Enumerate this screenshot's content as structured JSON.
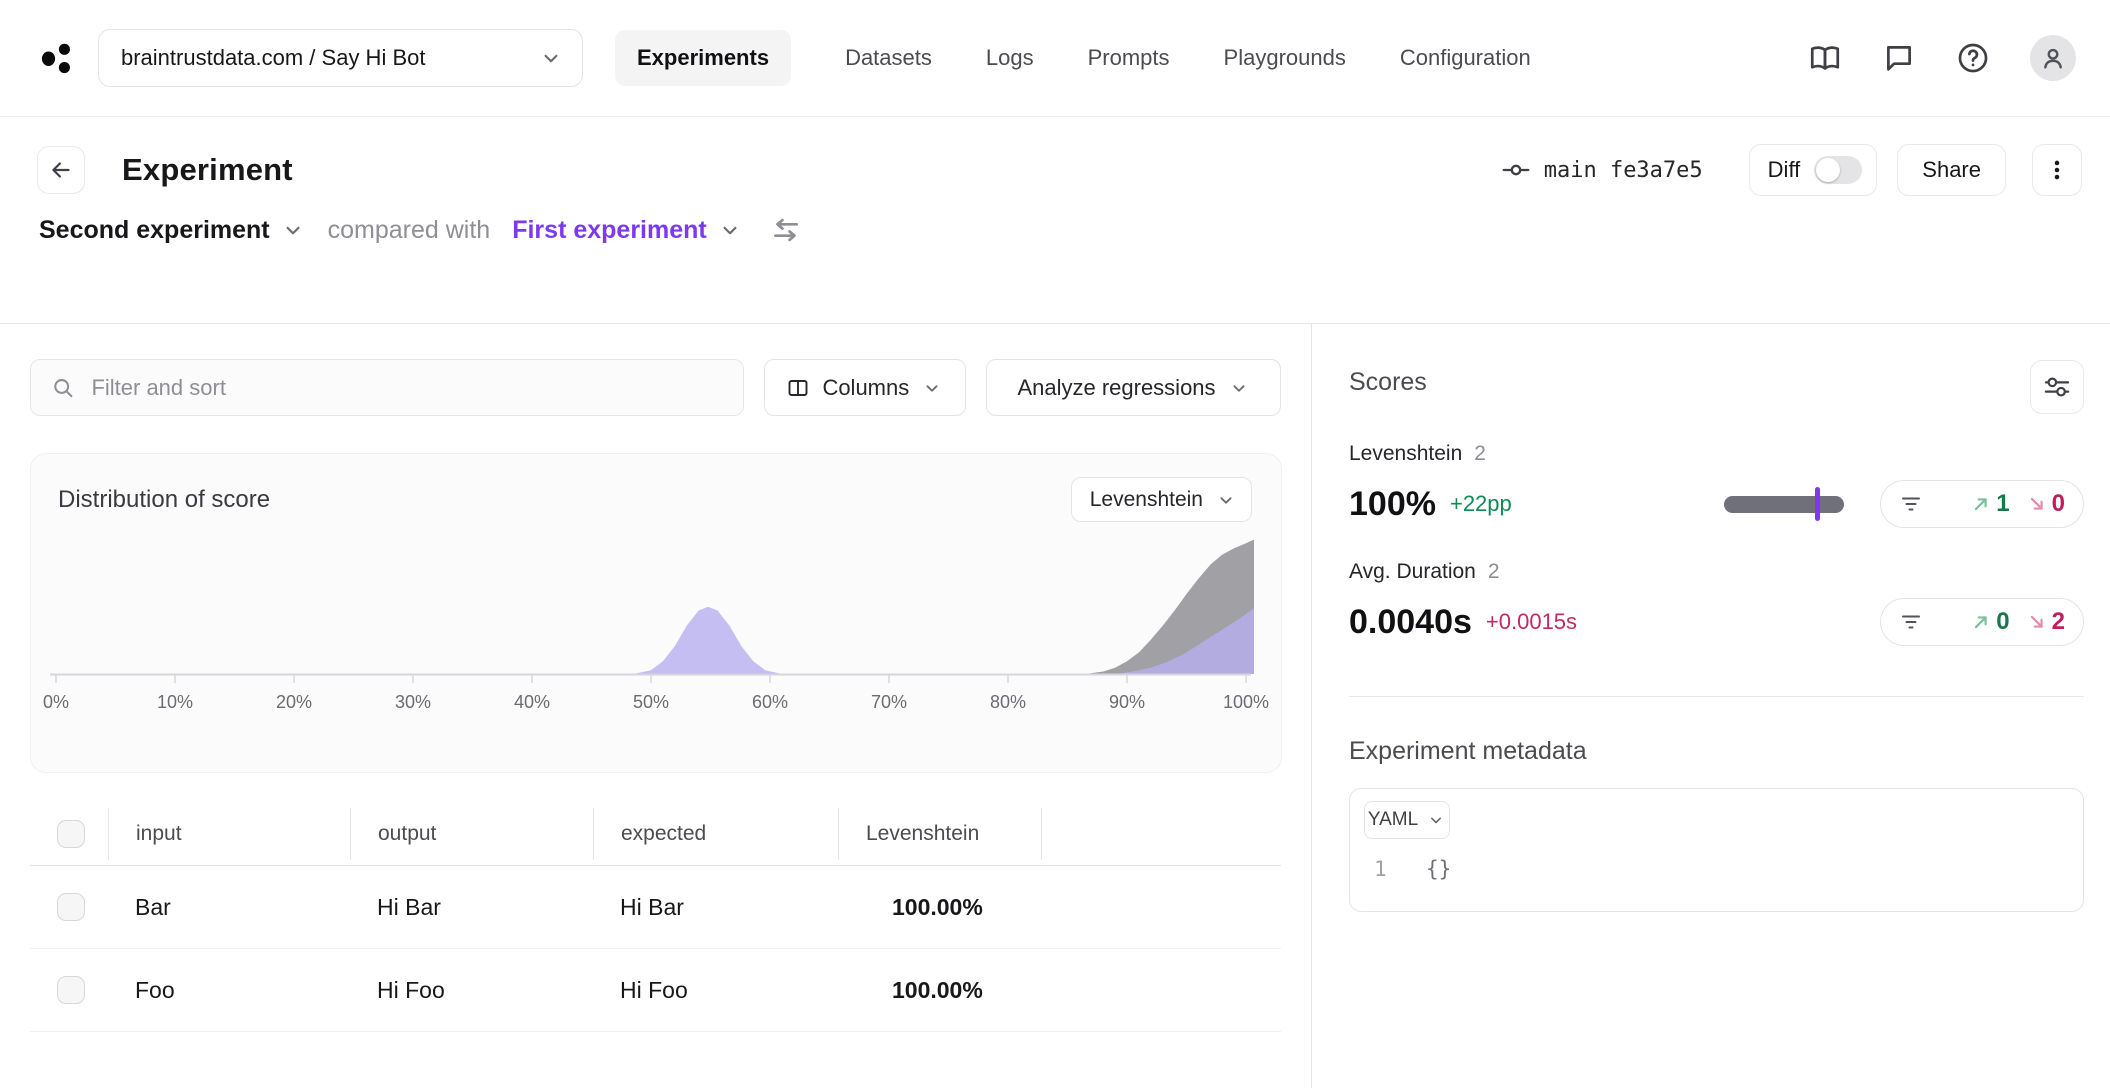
{
  "nav": {
    "project_selector": "braintrustdata.com / Say Hi Bot",
    "tabs": [
      {
        "label": "Experiments",
        "active": true
      },
      {
        "label": "Datasets",
        "active": false
      },
      {
        "label": "Logs",
        "active": false
      },
      {
        "label": "Prompts",
        "active": false
      },
      {
        "label": "Playgrounds",
        "active": false
      },
      {
        "label": "Configuration",
        "active": false
      }
    ],
    "icons": [
      "docs-book",
      "feedback-chat",
      "help",
      "account-avatar"
    ]
  },
  "header": {
    "title": "Experiment",
    "git_ref": "main fe3a7e5",
    "diff_label": "Diff",
    "diff_enabled": false,
    "share_label": "Share"
  },
  "comparison": {
    "base_experiment": "Second experiment",
    "compared_with_label": "compared with",
    "comparison_experiment": "First experiment",
    "comparison_color": "#7c3aed"
  },
  "toolbar": {
    "filter_placeholder": "Filter and sort",
    "columns_label": "Columns",
    "analyze_label": "Analyze regressions"
  },
  "chart_data": {
    "type": "area",
    "title": "Distribution of score",
    "metric_selector": "Levenshtein",
    "x_ticks": [
      "0%",
      "10%",
      "20%",
      "30%",
      "40%",
      "50%",
      "60%",
      "70%",
      "80%",
      "90%",
      "100%"
    ],
    "xlim": [
      0,
      100.7
    ],
    "ylim": [
      0,
      1
    ],
    "grid": false,
    "legend": false,
    "series": [
      {
        "name": "comparison-density-high",
        "color": "#8f8f95",
        "opacity": 0.85,
        "points": [
          [
            86.5,
            0
          ],
          [
            88,
            0.02
          ],
          [
            89,
            0.05
          ],
          [
            90,
            0.1
          ],
          [
            91,
            0.17
          ],
          [
            92,
            0.27
          ],
          [
            93,
            0.38
          ],
          [
            94,
            0.5
          ],
          [
            95,
            0.63
          ],
          [
            96,
            0.75
          ],
          [
            97,
            0.86
          ],
          [
            98,
            0.94
          ],
          [
            99,
            0.99
          ],
          [
            100,
            1.03
          ],
          [
            100.7,
            1.06
          ]
        ]
      },
      {
        "name": "density-mid-bump",
        "color": "#b7aff0",
        "opacity": 0.8,
        "points": [
          [
            48.5,
            0
          ],
          [
            50,
            0.03
          ],
          [
            51,
            0.1
          ],
          [
            52,
            0.22
          ],
          [
            53,
            0.38
          ],
          [
            54,
            0.5
          ],
          [
            54.8,
            0.53
          ],
          [
            55.6,
            0.5
          ],
          [
            56.6,
            0.38
          ],
          [
            57.6,
            0.22
          ],
          [
            58.6,
            0.1
          ],
          [
            59.6,
            0.03
          ],
          [
            61,
            0
          ]
        ]
      },
      {
        "name": "density-high-overlay",
        "color": "#b7aff0",
        "opacity": 0.8,
        "points": [
          [
            89,
            0
          ],
          [
            90.5,
            0.02
          ],
          [
            92,
            0.05
          ],
          [
            93.5,
            0.1
          ],
          [
            95,
            0.17
          ],
          [
            96.5,
            0.26
          ],
          [
            98,
            0.35
          ],
          [
            99.5,
            0.44
          ],
          [
            100.7,
            0.52
          ]
        ]
      }
    ]
  },
  "table": {
    "columns": [
      "input",
      "output",
      "expected",
      "Levenshtein"
    ],
    "rows": [
      {
        "input": "Bar",
        "output": "Hi Bar",
        "expected": "Hi Bar",
        "levenshtein": "100.00%"
      },
      {
        "input": "Foo",
        "output": "Hi Foo",
        "expected": "Hi Foo",
        "levenshtein": "100.00%"
      }
    ]
  },
  "scores_panel": {
    "title": "Scores",
    "items": [
      {
        "name": "Levenshtein",
        "count": "2",
        "value": "100%",
        "delta": "+22pp",
        "delta_color": "#0e8a52",
        "improvements": "1",
        "regressions": "0",
        "bar": {
          "fill_pct": 100,
          "marker_pct": 78
        }
      },
      {
        "name": "Avg. Duration",
        "count": "2",
        "value": "0.0040s",
        "delta": "+0.0015s",
        "delta_color": "#c42a62",
        "improvements": "0",
        "regressions": "2"
      }
    ],
    "metadata_title": "Experiment metadata",
    "yaml_label": "YAML",
    "editor": {
      "line_number": "1",
      "content": "{}"
    }
  },
  "colors": {
    "accent_purple": "#7c3aed",
    "positive_green": "#0e8a52",
    "negative_red": "#c42a62",
    "chart_purple": "#b7aff0",
    "chart_gray": "#8f8f95"
  }
}
